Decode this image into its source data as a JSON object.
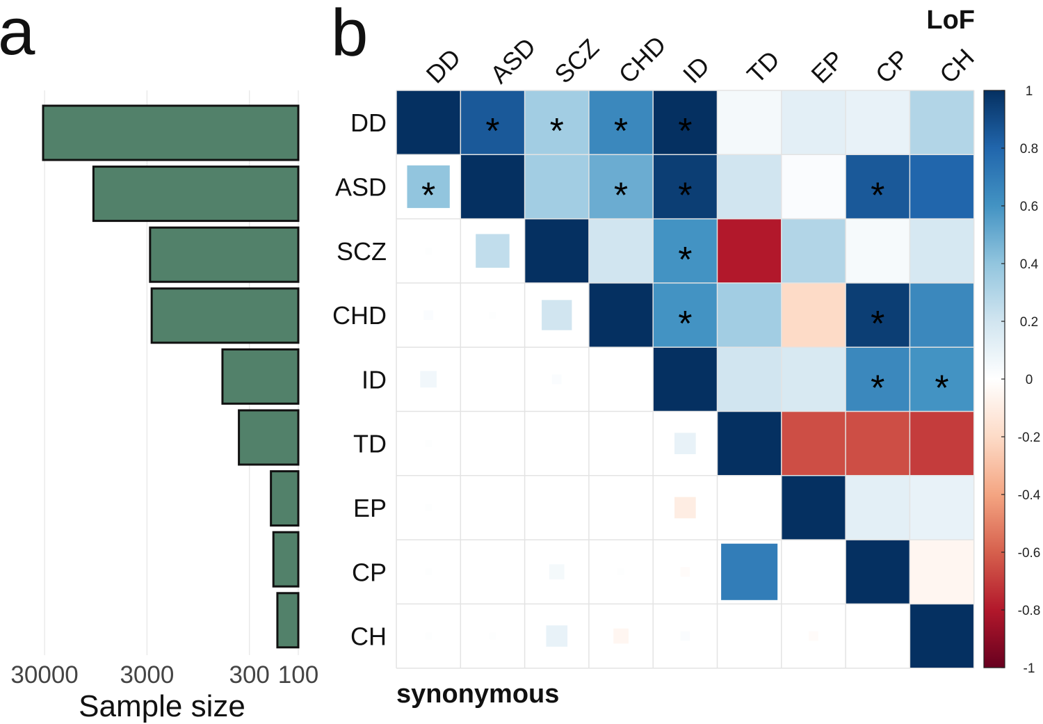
{
  "panel_a": {
    "label": "a",
    "chart_data": {
      "type": "bar",
      "orientation": "horizontal",
      "scale": "log10",
      "x_direction": "reversed",
      "categories": [
        "DD",
        "ASD",
        "SCZ",
        "CHD",
        "ID",
        "TD",
        "EP",
        "CP",
        "CH"
      ],
      "values": [
        31000,
        10000,
        2800,
        2700,
        550,
        380,
        185,
        175,
        160
      ],
      "xlabel": "Sample size",
      "xticks": [
        30000,
        3000,
        300,
        100
      ],
      "xtick_labels": [
        "30000",
        "3000",
        "300",
        "100"
      ],
      "xlim": [
        100,
        31000
      ],
      "bar_color": "#52816a",
      "bar_edge_color": "#111111"
    }
  },
  "panel_b": {
    "label": "b",
    "chart_data": {
      "type": "heatmap",
      "title_upper": "LoF",
      "title_lower": "synonymous",
      "row_labels": [
        "DD",
        "ASD",
        "SCZ",
        "CHD",
        "ID",
        "TD",
        "EP",
        "CP",
        "CH"
      ],
      "col_labels": [
        "DD",
        "ASD",
        "SCZ",
        "CHD",
        "ID",
        "TD",
        "EP",
        "CP",
        "CH"
      ],
      "matrix": [
        [
          1.0,
          0.85,
          0.35,
          0.65,
          1.0,
          0.05,
          0.12,
          0.1,
          0.3
        ],
        [
          0.4,
          1.0,
          0.35,
          0.5,
          0.95,
          0.2,
          0.02,
          0.85,
          0.8
        ],
        [
          0.01,
          0.25,
          1.0,
          0.2,
          0.6,
          -0.8,
          0.3,
          0.04,
          0.18
        ],
        [
          0.02,
          0.01,
          0.2,
          1.0,
          0.6,
          0.35,
          -0.2,
          0.95,
          0.65
        ],
        [
          0.06,
          0.0,
          0.02,
          0.0,
          1.0,
          0.2,
          0.17,
          0.65,
          0.6
        ],
        [
          0.01,
          0.0,
          0.0,
          0.0,
          0.1,
          1.0,
          -0.65,
          -0.65,
          -0.7
        ],
        [
          0.01,
          0.0,
          0.0,
          0.0,
          -0.1,
          0.0,
          1.0,
          0.12,
          0.1
        ],
        [
          0.01,
          0.0,
          0.05,
          0.01,
          -0.02,
          0.7,
          0.0,
          1.0,
          -0.05
        ],
        [
          0.01,
          0.01,
          0.1,
          -0.05,
          0.02,
          0.0,
          -0.02,
          0.0,
          1.0
        ]
      ],
      "significant": [
        [
          0,
          1
        ],
        [
          0,
          2
        ],
        [
          0,
          3
        ],
        [
          0,
          4
        ],
        [
          1,
          0
        ],
        [
          1,
          3
        ],
        [
          1,
          4
        ],
        [
          1,
          7
        ],
        [
          2,
          4
        ],
        [
          3,
          4
        ],
        [
          3,
          7
        ],
        [
          4,
          7
        ],
        [
          4,
          8
        ]
      ],
      "significance_marker": "*",
      "colorbar": {
        "range": [
          -1,
          1
        ],
        "ticks": [
          1,
          0.8,
          0.6,
          0.4,
          0.2,
          0,
          -0.2,
          -0.4,
          -0.6,
          -0.8,
          -1
        ],
        "tick_labels": [
          "1",
          "0.8",
          "0.6",
          "0.4",
          "0.2",
          "0",
          "-0.2",
          "-0.4",
          "-0.6",
          "-0.8",
          "-1"
        ],
        "colors": [
          "#67001f",
          "#b2182b",
          "#d6604d",
          "#f4a582",
          "#fddbc7",
          "#ffffff",
          "#d1e5f0",
          "#92c5de",
          "#4393c3",
          "#2166ac",
          "#053061"
        ]
      },
      "grid_color": "#e3e3e3"
    }
  }
}
